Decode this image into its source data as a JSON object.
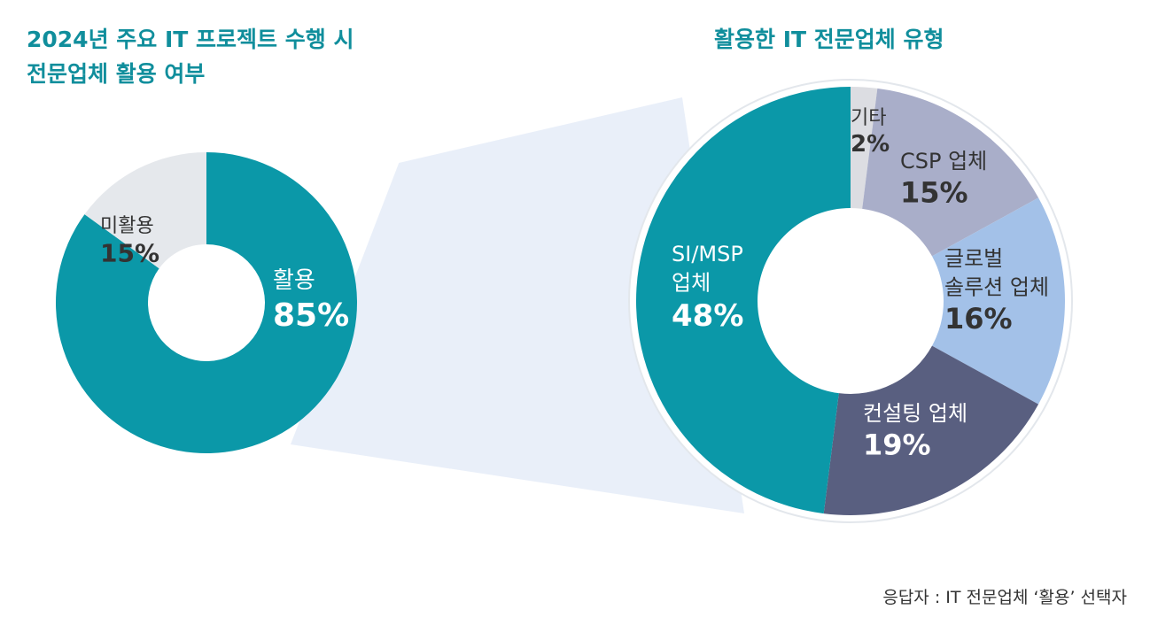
{
  "left_title": {
    "line1": "2024년 주요 IT 프로젝트 수행 시",
    "line2": "전문업체 활용 여부"
  },
  "right_title": "활용한 IT 전문업체 유형",
  "source_note": "응답자 : IT 전문업체 ‘활용’ 선택자",
  "colors": {
    "title": "#108e9c",
    "teal": "#0b98a8",
    "light_gray": "#e5e8ec",
    "gray_purple": "#a9aec9",
    "light_blue": "#a3c1e8",
    "navy": "#595f80",
    "etc_gray": "#dcdde2",
    "connector": "#e9eff9"
  },
  "chart_data": [
    {
      "type": "pie",
      "donut": true,
      "title": "2024년 주요 IT 프로젝트 수행 시 전문업체 활용 여부",
      "slices": [
        {
          "label": "활용",
          "value": 85,
          "value_label": "85%",
          "color": "#0b98a8",
          "text_color": "#ffffff"
        },
        {
          "label": "미활용",
          "value": 15,
          "value_label": "15%",
          "color": "#e5e8ec",
          "text_color": "#333333"
        }
      ]
    },
    {
      "type": "pie",
      "donut": true,
      "title": "활용한 IT 전문업체 유형",
      "slices": [
        {
          "label": "기타",
          "value": 2,
          "value_label": "2%",
          "color": "#dcdde2",
          "text_color": "#333333"
        },
        {
          "label": "CSP 업체",
          "value": 15,
          "value_label": "15%",
          "color": "#a9aec9",
          "text_color": "#333333"
        },
        {
          "label": "글로벌\n솔루션 업체",
          "value": 16,
          "value_label": "16%",
          "color": "#a3c1e8",
          "text_color": "#333333"
        },
        {
          "label": "컨설팅 업체",
          "value": 19,
          "value_label": "19%",
          "color": "#595f80",
          "text_color": "#ffffff"
        },
        {
          "label": "SI/MSP\n업체",
          "value": 48,
          "value_label": "48%",
          "color": "#0b98a8",
          "text_color": "#ffffff"
        }
      ]
    }
  ]
}
